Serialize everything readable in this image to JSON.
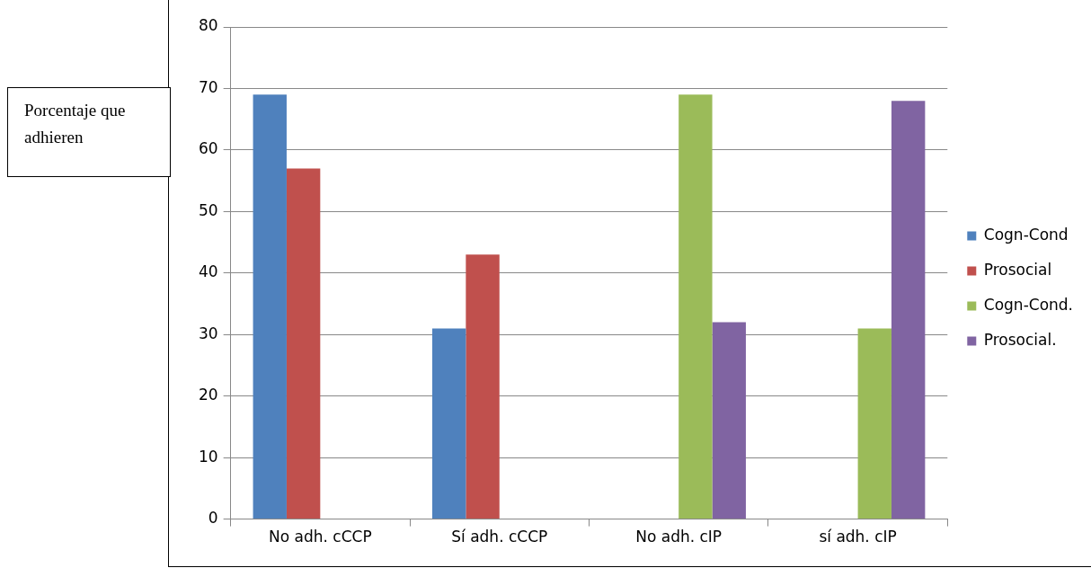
{
  "chart_data": {
    "type": "bar",
    "ylabel": "Porcentaje que adhieren",
    "categories": [
      "No adh. cCCP",
      "Sí adh. cCCP",
      "No adh. cIP",
      "sí adh. cIP"
    ],
    "series": [
      {
        "name": "Cogn-Cond",
        "color": "#4f81bd",
        "values": [
          69,
          31,
          null,
          null
        ]
      },
      {
        "name": "Prosocial",
        "color": "#c0504d",
        "values": [
          57,
          43,
          null,
          null
        ]
      },
      {
        "name": "Cogn-Cond.",
        "color": "#9bbb59",
        "values": [
          null,
          null,
          69,
          31
        ]
      },
      {
        "name": "Prosocial.",
        "color": "#8064a2",
        "values": [
          null,
          null,
          32,
          68
        ]
      }
    ],
    "ylim": [
      0,
      80
    ],
    "yticks": [
      0,
      10,
      20,
      30,
      40,
      50,
      60,
      70,
      80
    ],
    "grid": "y",
    "legend": "right"
  }
}
